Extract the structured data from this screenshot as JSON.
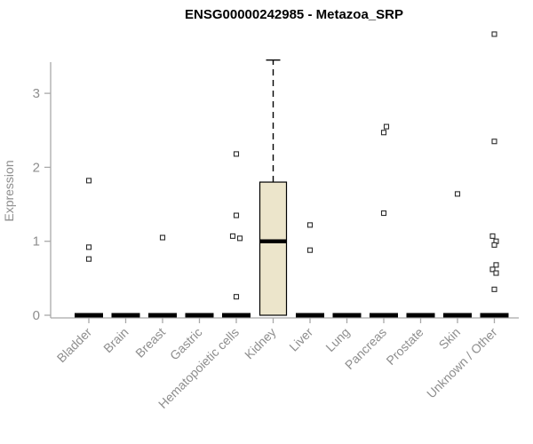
{
  "title": "ENSG00000242985 - Metazoa_SRP",
  "chart_data": {
    "type": "boxplot",
    "title": "ENSG00000242985 - Metazoa_SRP",
    "ylabel": "Expression",
    "ylim": [
      0,
      3.9
    ],
    "yticks": [
      0,
      1,
      2,
      3
    ],
    "grid": false,
    "legend": "none",
    "categories": [
      "Bladder",
      "Brain",
      "Breast",
      "Gastric",
      "Hematopoietic cells",
      "Kidney",
      "Liver",
      "Lung",
      "Pancreas",
      "Prostate",
      "Skin",
      "Unknown / Other"
    ],
    "boxes": [
      {
        "category": "Bladder",
        "q1": 0,
        "median": 0,
        "q3": 0,
        "whisker_low": 0,
        "whisker_high": 0,
        "outliers": [
          {
            "v": 1.82,
            "j": 0
          },
          {
            "v": 0.92,
            "j": 0
          },
          {
            "v": 0.76,
            "j": 0
          }
        ]
      },
      {
        "category": "Brain",
        "q1": 0,
        "median": 0,
        "q3": 0,
        "whisker_low": 0,
        "whisker_high": 0,
        "outliers": []
      },
      {
        "category": "Breast",
        "q1": 0,
        "median": 0,
        "q3": 0,
        "whisker_low": 0,
        "whisker_high": 0,
        "outliers": [
          {
            "v": 1.05,
            "j": 0
          }
        ]
      },
      {
        "category": "Gastric",
        "q1": 0,
        "median": 0,
        "q3": 0,
        "whisker_low": 0,
        "whisker_high": 0,
        "outliers": []
      },
      {
        "category": "Hematopoietic cells",
        "q1": 0,
        "median": 0,
        "q3": 0,
        "whisker_low": 0,
        "whisker_high": 0,
        "outliers": [
          {
            "v": 2.18,
            "j": 0
          },
          {
            "v": 1.35,
            "j": 0
          },
          {
            "v": 1.07,
            "j": -4
          },
          {
            "v": 1.04,
            "j": 4
          },
          {
            "v": 0.25,
            "j": 0
          }
        ]
      },
      {
        "category": "Kidney",
        "q1": 0,
        "median": 1.0,
        "q3": 1.8,
        "whisker_low": 0,
        "whisker_high": 3.45,
        "outliers": []
      },
      {
        "category": "Liver",
        "q1": 0,
        "median": 0,
        "q3": 0,
        "whisker_low": 0,
        "whisker_high": 0,
        "outliers": [
          {
            "v": 1.22,
            "j": 0
          },
          {
            "v": 0.88,
            "j": 0
          }
        ]
      },
      {
        "category": "Lung",
        "q1": 0,
        "median": 0,
        "q3": 0,
        "whisker_low": 0,
        "whisker_high": 0,
        "outliers": []
      },
      {
        "category": "Pancreas",
        "q1": 0,
        "median": 0,
        "q3": 0,
        "whisker_low": 0,
        "whisker_high": 0,
        "outliers": [
          {
            "v": 2.55,
            "j": 3
          },
          {
            "v": 2.47,
            "j": 0
          },
          {
            "v": 1.38,
            "j": 0
          }
        ]
      },
      {
        "category": "Prostate",
        "q1": 0,
        "median": 0,
        "q3": 0,
        "whisker_low": 0,
        "whisker_high": 0,
        "outliers": []
      },
      {
        "category": "Skin",
        "q1": 0,
        "median": 0,
        "q3": 0,
        "whisker_low": 0,
        "whisker_high": 0,
        "outliers": [
          {
            "v": 1.64,
            "j": 0
          }
        ]
      },
      {
        "category": "Unknown / Other",
        "q1": 0,
        "median": 0,
        "q3": 0,
        "whisker_low": 0,
        "whisker_high": 0,
        "outliers": [
          {
            "v": 3.8,
            "j": 0
          },
          {
            "v": 2.35,
            "j": 0
          },
          {
            "v": 1.07,
            "j": -2
          },
          {
            "v": 1.0,
            "j": 2
          },
          {
            "v": 0.95,
            "j": 0
          },
          {
            "v": 0.68,
            "j": 2
          },
          {
            "v": 0.62,
            "j": -2
          },
          {
            "v": 0.57,
            "j": 2
          },
          {
            "v": 0.35,
            "j": 0
          }
        ]
      }
    ],
    "colors": {
      "box_fill": "#ece5cb",
      "box_stroke": "#000000",
      "median": "#000000",
      "whisker": "#000000",
      "axis": "#a9a9a9",
      "tick_label": "#8e8e8e",
      "outlier_stroke": "#2b2b2b",
      "outlier_fill": "#ffffff",
      "background": "#ffffff"
    }
  }
}
